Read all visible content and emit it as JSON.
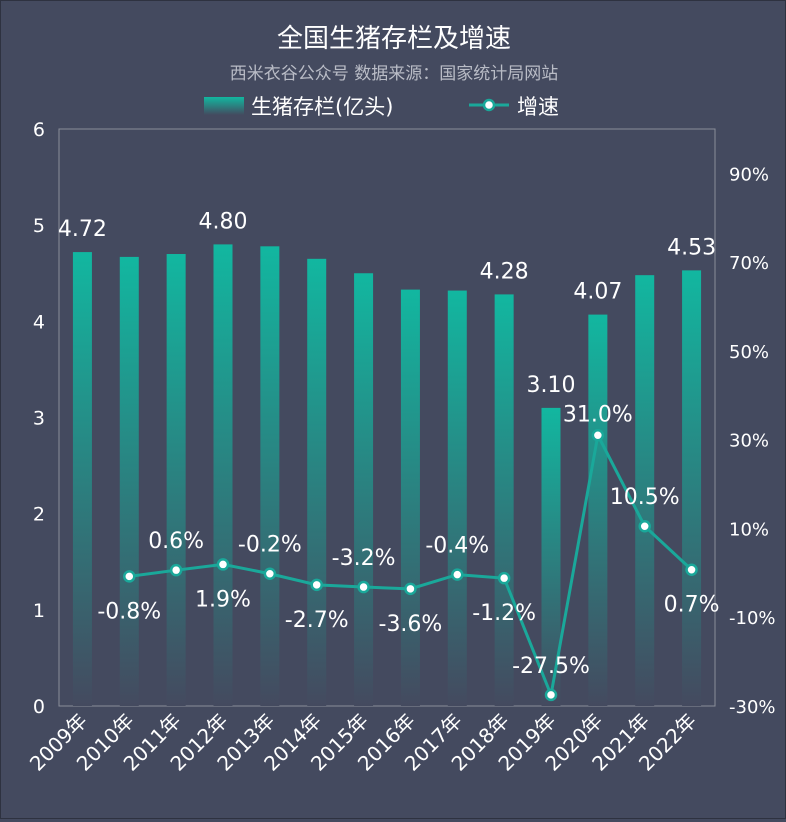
{
  "chart_data": {
    "type": "bar+line",
    "title": "全国生猪存栏及增速",
    "subtitle": "西米衣谷公众号 数据来源：国家统计局网站",
    "categories": [
      "2009年",
      "2010年",
      "2011年",
      "2012年",
      "2013年",
      "2014年",
      "2015年",
      "2016年",
      "2017年",
      "2018年",
      "2019年",
      "2020年",
      "2021年",
      "2022年"
    ],
    "series": [
      {
        "name": "生猪存栏(亿头)",
        "type": "bar",
        "axis": "left",
        "values": [
          4.72,
          4.67,
          4.7,
          4.8,
          4.78,
          4.65,
          4.5,
          4.33,
          4.32,
          4.28,
          3.1,
          4.07,
          4.48,
          4.53
        ],
        "labels": [
          "4.72",
          "",
          "",
          "4.80",
          "",
          "",
          "",
          "",
          "",
          "4.28",
          "3.10",
          "4.07",
          "",
          "4.53"
        ],
        "color": "#14b39e"
      },
      {
        "name": "增速",
        "type": "line",
        "axis": "right",
        "values": [
          null,
          -0.8,
          0.6,
          1.9,
          -0.2,
          -2.7,
          -3.2,
          -3.6,
          -0.4,
          -1.2,
          -27.5,
          31.0,
          10.5,
          0.7
        ],
        "labels": [
          "",
          "-0.8%",
          "0.6%",
          "1.9%",
          "-0.2%",
          "-2.7%",
          "-3.2%",
          "-3.6%",
          "-0.4%",
          "-1.2%",
          "-27.5%",
          "31.0%",
          "10.5%",
          "0.7%"
        ],
        "color": "#1aa89a"
      }
    ],
    "y_left": {
      "range": [
        0,
        6
      ],
      "ticks": [
        "0",
        "1",
        "2",
        "3",
        "4",
        "5",
        "6"
      ]
    },
    "y_right": {
      "range": [
        -30,
        100
      ],
      "ticks": [
        "-30%",
        "-10%",
        "10%",
        "30%",
        "50%",
        "70%",
        "90%"
      ],
      "tick_values": [
        -30,
        -10,
        10,
        30,
        50,
        70,
        90
      ]
    },
    "legend_position": "top",
    "grid": false
  }
}
